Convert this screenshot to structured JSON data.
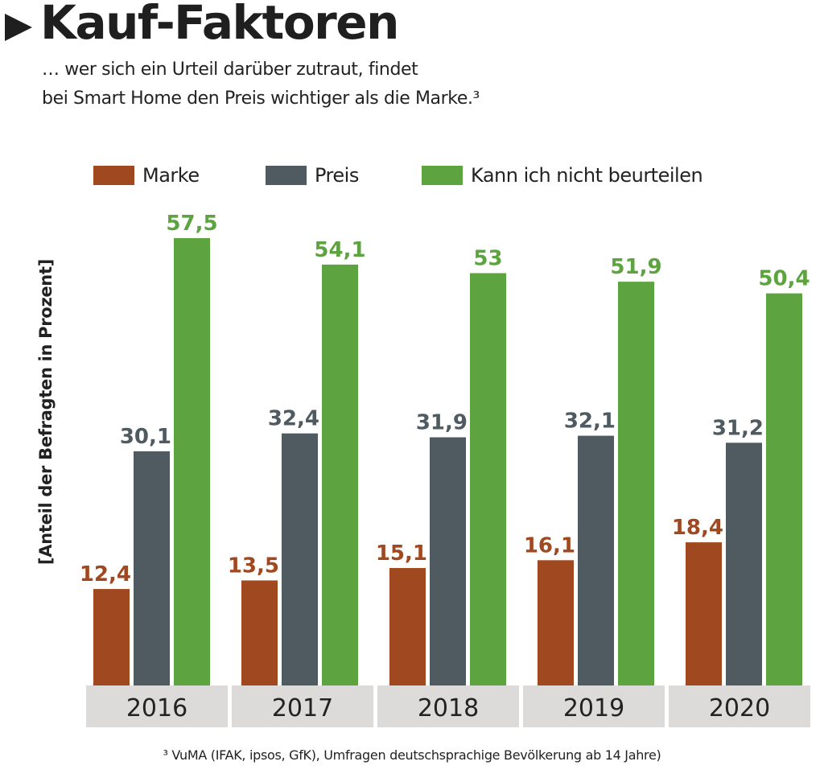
{
  "title": "Kauf-Faktoren",
  "subtitle_lines": [
    "… wer sich ein Urteil darüber zutraut, findet",
    "bei Smart Home den Preis wichtiger als die Marke.³"
  ],
  "footnote": "³ VuMA (IFAK, ipsos, GfK), Umfragen deutschsprachige Bevölkerung ab 14 Jahre)",
  "icons": {
    "title_marker": "play-triangle-icon"
  },
  "chart_data": {
    "type": "bar",
    "title": "Kauf-Faktoren",
    "xlabel": "",
    "ylabel": "[Anteil der Befragten in Prozent]",
    "ylim": [
      0,
      60
    ],
    "grid": false,
    "legend_position": "top",
    "decimal_separator": ",",
    "categories": [
      "2016",
      "2017",
      "2018",
      "2019",
      "2020"
    ],
    "series": [
      {
        "name": "Marke",
        "color": "#a0481f",
        "values": [
          12.4,
          13.5,
          15.1,
          16.1,
          18.4
        ],
        "labels": [
          "12,4",
          "13,5",
          "15,1",
          "16,1",
          "18,4"
        ]
      },
      {
        "name": "Preis",
        "color": "#4f5b60",
        "values": [
          30.1,
          32.4,
          31.9,
          32.1,
          31.2
        ],
        "labels": [
          "30,1",
          "32,4",
          "31,9",
          "32,1",
          "31,2"
        ]
      },
      {
        "name": "Kann ich nicht beurteilen",
        "color": "#5da340",
        "values": [
          57.5,
          54.1,
          53,
          51.9,
          50.4
        ],
        "labels": [
          "57,5",
          "54,1",
          "53",
          "51,9",
          "50,4"
        ]
      }
    ],
    "category_box_color": "#dcdbda"
  }
}
